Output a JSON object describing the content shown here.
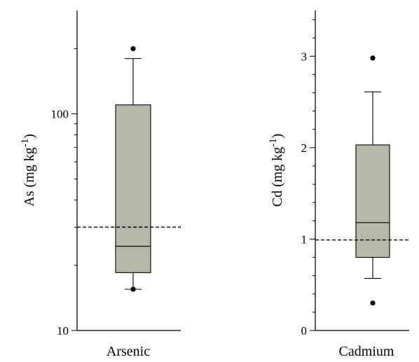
{
  "chart_data": [
    {
      "type": "box",
      "category": "Arsenic",
      "ylabel_main": "As (mg kg",
      "ylabel_sup": "-1",
      "ylabel_close": ")",
      "yscale": "log",
      "ylim": [
        10,
        300
      ],
      "yticks": [
        10,
        100
      ],
      "ytick_labels": [
        "10",
        "100"
      ],
      "box": {
        "whisker_low": 15.5,
        "q1": 18.5,
        "median": 24.5,
        "q3": 110,
        "whisker_high": 180
      },
      "outliers": [
        15.5,
        200
      ],
      "reference_line": 30
    },
    {
      "type": "box",
      "category": "Cadmium",
      "ylabel_main": "Cd (mg kg",
      "ylabel_sup": "-1",
      "ylabel_close": ")",
      "yscale": "linear",
      "ylim": [
        0,
        3.5
      ],
      "yticks": [
        0,
        1,
        2,
        3
      ],
      "ytick_labels": [
        "0",
        "1",
        "2",
        "3"
      ],
      "minor_step": 0.2,
      "box": {
        "whisker_low": 0.57,
        "q1": 0.8,
        "median": 1.18,
        "q3": 2.03,
        "whisker_high": 2.61
      },
      "outliers": [
        0.3,
        2.98
      ],
      "reference_line": 0.99
    }
  ]
}
